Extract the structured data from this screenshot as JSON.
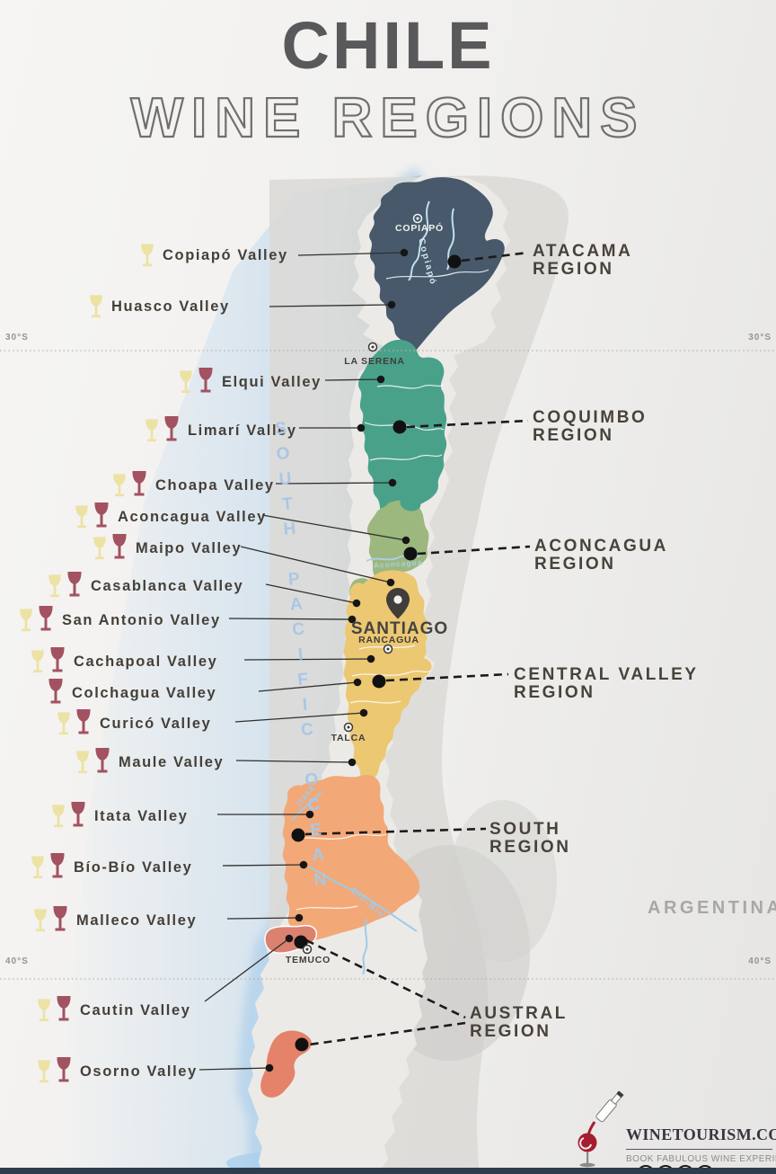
{
  "title": {
    "line1": "CHILE",
    "line2": "WINE REGIONS"
  },
  "map": {
    "ocean_label": "SOUTH PACIFIC OCEAN",
    "neighbor_label": "ARGENTINA",
    "latitudes": [
      {
        "label": "30°S"
      },
      {
        "label": "40°S"
      }
    ],
    "cities": [
      {
        "name": "COPIAPÓ"
      },
      {
        "name": "LA SERENA"
      },
      {
        "name": "SANTIAGO"
      },
      {
        "name": "RANCAGUA"
      },
      {
        "name": "TALCA"
      },
      {
        "name": "TEMUCO"
      }
    ],
    "rivers": [
      {
        "name": "Copiapó"
      },
      {
        "name": "Aconcagua"
      },
      {
        "name": "Itata"
      },
      {
        "name": "Bío-Bío"
      }
    ]
  },
  "regions": [
    {
      "line1": "ATACAMA",
      "line2": "REGION",
      "color": "#47596b"
    },
    {
      "line1": "COQUIMBO",
      "line2": "REGION",
      "color": "#4aa18a"
    },
    {
      "line1": "ACONCAGUA",
      "line2": "REGION",
      "color": "#9cb87e"
    },
    {
      "line1": "CENTRAL VALLEY",
      "line2": "REGION",
      "color": "#ecc873"
    },
    {
      "line1": "SOUTH",
      "line2": "REGION",
      "color": "#f3a877"
    },
    {
      "line1": "AUSTRAL",
      "line2": "REGION",
      "color": "#dc8170"
    }
  ],
  "valleys": [
    {
      "name": "Copiapó Valley",
      "glasses": [
        "white"
      ]
    },
    {
      "name": "Huasco Valley",
      "glasses": [
        "white"
      ]
    },
    {
      "name": "Elqui Valley",
      "glasses": [
        "white",
        "red"
      ]
    },
    {
      "name": "Limarí Valley",
      "glasses": [
        "white",
        "red"
      ]
    },
    {
      "name": "Choapa Valley",
      "glasses": [
        "white",
        "red"
      ]
    },
    {
      "name": "Aconcagua Valley",
      "glasses": [
        "white",
        "red"
      ]
    },
    {
      "name": "Maipo Valley",
      "glasses": [
        "white",
        "red"
      ]
    },
    {
      "name": "Casablanca Valley",
      "glasses": [
        "white",
        "red"
      ]
    },
    {
      "name": "San Antonio Valley",
      "glasses": [
        "white",
        "red"
      ]
    },
    {
      "name": "Cachapoal Valley",
      "glasses": [
        "white",
        "red"
      ]
    },
    {
      "name": "Colchagua Valley",
      "glasses": [
        "red"
      ]
    },
    {
      "name": "Curicó Valley",
      "glasses": [
        "white",
        "red"
      ]
    },
    {
      "name": "Maule Valley",
      "glasses": [
        "white",
        "red"
      ]
    },
    {
      "name": "Itata Valley",
      "glasses": [
        "white",
        "red"
      ]
    },
    {
      "name": "Bío-Bío Valley",
      "glasses": [
        "white",
        "red"
      ]
    },
    {
      "name": "Malleco Valley",
      "glasses": [
        "white",
        "red"
      ]
    },
    {
      "name": "Cautin Valley",
      "glasses": [
        "white",
        "red"
      ]
    },
    {
      "name": "Osorno Valley",
      "glasses": [
        "white",
        "red"
      ]
    }
  ],
  "colors": {
    "white_wine": "#ece2a4",
    "red_wine": "#a25260",
    "ocean": "#a9cdec",
    "river": "#9fcbe8",
    "land": "#eceae7",
    "neighbor_land": "#dbdad7",
    "austral_north": "#db8170",
    "austral_south": "#e5826a",
    "footer_bar": "#2e3d4d",
    "logo_red": "#a51e2f"
  },
  "footer": {
    "brand": "WINETOURISM.COM",
    "tagline": "BOOK FABULOUS WINE EXPERIENCES"
  }
}
